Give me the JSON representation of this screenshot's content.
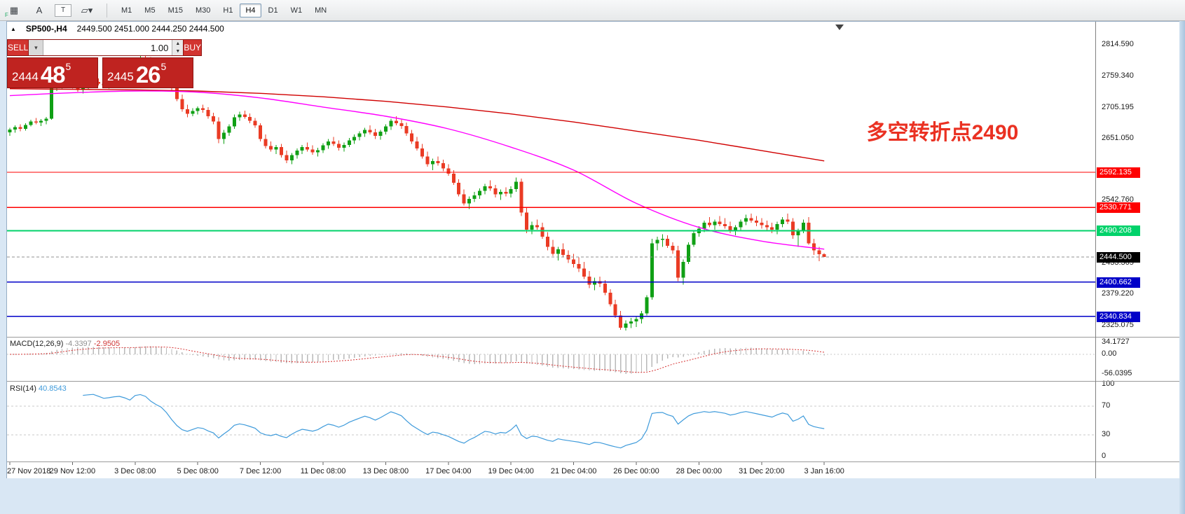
{
  "toolbar": {
    "icons": [
      {
        "name": "indicators-grid-icon",
        "glyph": "▦",
        "badge": "F"
      },
      {
        "name": "annotate-letter-icon",
        "glyph": "A"
      },
      {
        "name": "text-tool-icon",
        "glyph": "T",
        "boxed": true
      },
      {
        "name": "shapes-tool-icon",
        "glyph": "▱▾"
      }
    ],
    "timeframes": [
      "M1",
      "M5",
      "M15",
      "M30",
      "H1",
      "H4",
      "D1",
      "W1",
      "MN"
    ],
    "active_timeframe": "H4"
  },
  "title_bar": {
    "collapse_glyph": "▲",
    "symbol_period": "SP500-,H4",
    "ohlc_text": "2449.500 2451.000 2444.250 2444.500"
  },
  "trade_panel": {
    "sell_label": "SELL",
    "buy_label": "BUY",
    "volume": "1.00",
    "bid_int": "2444",
    "bid_big": "48",
    "bid_sup": "5",
    "ask_int": "2445",
    "ask_big": "26",
    "ask_sup": "5"
  },
  "annotation": {
    "text": "多空转折点2490",
    "color": "#ea3122"
  },
  "chart_data": {
    "type": "candlestick",
    "symbol": "SP500-",
    "timeframe": "H4",
    "price_range": {
      "top": 2855,
      "bottom": 2305
    },
    "bars_per_label": 12,
    "time_labels": [
      "27 Nov 2018",
      "29 Nov 12:00",
      "3 Dec 08:00",
      "5 Dec 08:00",
      "7 Dec 12:00",
      "11 Dec 08:00",
      "13 Dec 08:00",
      "17 Dec 04:00",
      "19 Dec 04:00",
      "21 Dec 04:00",
      "26 Dec 00:00",
      "28 Dec 00:00",
      "31 Dec 20:00",
      "3 Jan 16:00"
    ],
    "y_ticks": [
      "2814.590",
      "2759.340",
      "2705.195",
      "2651.050",
      "2542.760",
      "2433.365",
      "2379.220",
      "2325.075"
    ],
    "colors": {
      "up": "#10a015",
      "down": "#ea3b24",
      "macd_hist": "#b9b9b9",
      "macd_signal": "#d63030",
      "rsi_line": "#3f9bdb",
      "bid_line": "#909090"
    },
    "h_lines": [
      {
        "price": 2592.135,
        "label": "2592.135",
        "color": "#fe0000",
        "width": 1.2
      },
      {
        "price": 2530.771,
        "label": "2530.771",
        "color": "#fe0000",
        "width": 1.2
      },
      {
        "price": 2490.208,
        "label": "2490.208",
        "color": "#00d26a",
        "width": 2
      },
      {
        "price": 2400.662,
        "label": "2400.662",
        "color": "#0000c8",
        "width": 1.5
      },
      {
        "price": 2340.834,
        "label": "2340.834",
        "color": "#0000c8",
        "width": 1.5
      }
    ],
    "current_price": {
      "value": 2444.5,
      "label": "2444.500"
    },
    "overlays": {
      "ma_fast": {
        "color": "#ff00ff",
        "points": [
          [
            0,
            2726
          ],
          [
            12,
            2731
          ],
          [
            24,
            2734
          ],
          [
            36,
            2732
          ],
          [
            48,
            2722
          ],
          [
            60,
            2706
          ],
          [
            72,
            2690
          ],
          [
            84,
            2668
          ],
          [
            96,
            2636
          ],
          [
            108,
            2596
          ],
          [
            120,
            2538
          ],
          [
            132,
            2496
          ],
          [
            144,
            2472
          ],
          [
            156,
            2458
          ]
        ]
      },
      "ma_slow": {
        "color": "#d00000",
        "points": [
          [
            0,
            2738
          ],
          [
            12,
            2737
          ],
          [
            24,
            2736
          ],
          [
            36,
            2734
          ],
          [
            48,
            2730
          ],
          [
            60,
            2724
          ],
          [
            72,
            2716
          ],
          [
            84,
            2706
          ],
          [
            96,
            2694
          ],
          [
            108,
            2680
          ],
          [
            120,
            2664
          ],
          [
            132,
            2648
          ],
          [
            144,
            2630
          ],
          [
            156,
            2612
          ]
        ]
      }
    },
    "indicators": {
      "macd": {
        "label": "MACD(12,26,9)",
        "value_main": "-4.3397",
        "value_signal": "-2.9505",
        "params": {
          "fast": 12,
          "slow": 26,
          "signal": 9
        },
        "scale": [
          {
            "label": "34.1727",
            "v": 34.1727
          },
          {
            "label": "0.00",
            "v": 0
          },
          {
            "label": "-56.0395",
            "v": -56.0395
          }
        ]
      },
      "rsi": {
        "label": "RSI(14)",
        "value": "40.8543",
        "period": 14,
        "levels": [
          70,
          30
        ],
        "scale": [
          {
            "label": "100",
            "v": 100
          },
          {
            "label": "70",
            "v": 70
          },
          {
            "label": "30",
            "v": 30
          },
          {
            "label": "0",
            "v": 0
          }
        ]
      }
    },
    "candles": [
      [
        2662,
        2670,
        2656,
        2667
      ],
      [
        2667,
        2674,
        2661,
        2671
      ],
      [
        2671,
        2676,
        2664,
        2668
      ],
      [
        2668,
        2678,
        2665,
        2675
      ],
      [
        2675,
        2684,
        2672,
        2681
      ],
      [
        2681,
        2687,
        2676,
        2679
      ],
      [
        2679,
        2685,
        2673,
        2682
      ],
      [
        2682,
        2689,
        2676,
        2686
      ],
      [
        2686,
        2745,
        2684,
        2740
      ],
      [
        2740,
        2750,
        2734,
        2744
      ],
      [
        2744,
        2752,
        2738,
        2747
      ],
      [
        2747,
        2754,
        2741,
        2745
      ],
      [
        2745,
        2751,
        2738,
        2742
      ],
      [
        2742,
        2748,
        2733,
        2736
      ],
      [
        2736,
        2744,
        2730,
        2741
      ],
      [
        2741,
        2749,
        2736,
        2746
      ],
      [
        2746,
        2754,
        2742,
        2750
      ],
      [
        2750,
        2756,
        2744,
        2747
      ],
      [
        2747,
        2753,
        2740,
        2744
      ],
      [
        2744,
        2750,
        2738,
        2748
      ],
      [
        2748,
        2757,
        2745,
        2754
      ],
      [
        2754,
        2761,
        2749,
        2757
      ],
      [
        2757,
        2763,
        2751,
        2755
      ],
      [
        2755,
        2760,
        2747,
        2752
      ],
      [
        2768,
        2786,
        2764,
        2782
      ],
      [
        2782,
        2796,
        2778,
        2791
      ],
      [
        2791,
        2800,
        2784,
        2788
      ],
      [
        2788,
        2793,
        2776,
        2780
      ],
      [
        2780,
        2786,
        2770,
        2774
      ],
      [
        2774,
        2781,
        2766,
        2769
      ],
      [
        2769,
        2776,
        2754,
        2758
      ],
      [
        2758,
        2764,
        2736,
        2740
      ],
      [
        2740,
        2746,
        2716,
        2720
      ],
      [
        2720,
        2728,
        2698,
        2702
      ],
      [
        2702,
        2710,
        2688,
        2694
      ],
      [
        2694,
        2704,
        2690,
        2699
      ],
      [
        2699,
        2707,
        2693,
        2704
      ],
      [
        2704,
        2710,
        2696,
        2701
      ],
      [
        2701,
        2706,
        2686,
        2690
      ],
      [
        2690,
        2696,
        2676,
        2681
      ],
      [
        2681,
        2688,
        2643,
        2650
      ],
      [
        2650,
        2666,
        2642,
        2661
      ],
      [
        2661,
        2676,
        2656,
        2672
      ],
      [
        2672,
        2693,
        2668,
        2688
      ],
      [
        2688,
        2698,
        2682,
        2693
      ],
      [
        2693,
        2700,
        2686,
        2689
      ],
      [
        2689,
        2695,
        2678,
        2682
      ],
      [
        2682,
        2687,
        2670,
        2674
      ],
      [
        2674,
        2678,
        2646,
        2650
      ],
      [
        2650,
        2658,
        2634,
        2638
      ],
      [
        2638,
        2646,
        2628,
        2632
      ],
      [
        2632,
        2640,
        2624,
        2636
      ],
      [
        2636,
        2642,
        2618,
        2622
      ],
      [
        2622,
        2630,
        2608,
        2613
      ],
      [
        2613,
        2626,
        2606,
        2622
      ],
      [
        2622,
        2634,
        2616,
        2630
      ],
      [
        2630,
        2640,
        2624,
        2636
      ],
      [
        2636,
        2644,
        2628,
        2632
      ],
      [
        2632,
        2639,
        2623,
        2627
      ],
      [
        2627,
        2635,
        2620,
        2631
      ],
      [
        2631,
        2643,
        2626,
        2639
      ],
      [
        2639,
        2650,
        2633,
        2646
      ],
      [
        2646,
        2654,
        2638,
        2642
      ],
      [
        2642,
        2648,
        2630,
        2635
      ],
      [
        2635,
        2644,
        2628,
        2640
      ],
      [
        2640,
        2652,
        2636,
        2648
      ],
      [
        2648,
        2658,
        2642,
        2654
      ],
      [
        2654,
        2664,
        2648,
        2660
      ],
      [
        2660,
        2670,
        2654,
        2666
      ],
      [
        2666,
        2674,
        2658,
        2662
      ],
      [
        2662,
        2668,
        2650,
        2656
      ],
      [
        2656,
        2666,
        2649,
        2663
      ],
      [
        2663,
        2676,
        2658,
        2672
      ],
      [
        2672,
        2686,
        2666,
        2682
      ],
      [
        2682,
        2690,
        2674,
        2678
      ],
      [
        2678,
        2684,
        2668,
        2673
      ],
      [
        2673,
        2679,
        2656,
        2660
      ],
      [
        2660,
        2666,
        2642,
        2646
      ],
      [
        2646,
        2654,
        2630,
        2634
      ],
      [
        2634,
        2642,
        2616,
        2620
      ],
      [
        2620,
        2628,
        2602,
        2606
      ],
      [
        2606,
        2616,
        2596,
        2612
      ],
      [
        2612,
        2620,
        2604,
        2608
      ],
      [
        2608,
        2614,
        2594,
        2599
      ],
      [
        2599,
        2606,
        2586,
        2590
      ],
      [
        2590,
        2596,
        2570,
        2574
      ],
      [
        2574,
        2580,
        2550,
        2554
      ],
      [
        2554,
        2562,
        2534,
        2538
      ],
      [
        2538,
        2550,
        2528,
        2546
      ],
      [
        2546,
        2558,
        2540,
        2552
      ],
      [
        2552,
        2564,
        2546,
        2560
      ],
      [
        2560,
        2572,
        2554,
        2568
      ],
      [
        2568,
        2578,
        2560,
        2564
      ],
      [
        2564,
        2570,
        2548,
        2554
      ],
      [
        2554,
        2562,
        2544,
        2558
      ],
      [
        2558,
        2566,
        2550,
        2555
      ],
      [
        2555,
        2568,
        2548,
        2563
      ],
      [
        2563,
        2583,
        2558,
        2576
      ],
      [
        2576,
        2581,
        2516,
        2522
      ],
      [
        2522,
        2530,
        2486,
        2492
      ],
      [
        2492,
        2506,
        2484,
        2500
      ],
      [
        2500,
        2510,
        2492,
        2496
      ],
      [
        2496,
        2504,
        2476,
        2480
      ],
      [
        2480,
        2488,
        2456,
        2462
      ],
      [
        2462,
        2474,
        2446,
        2450
      ],
      [
        2450,
        2462,
        2438,
        2458
      ],
      [
        2458,
        2468,
        2444,
        2448
      ],
      [
        2448,
        2456,
        2434,
        2440
      ],
      [
        2440,
        2450,
        2426,
        2432
      ],
      [
        2432,
        2444,
        2418,
        2424
      ],
      [
        2424,
        2436,
        2406,
        2410
      ],
      [
        2410,
        2420,
        2390,
        2396
      ],
      [
        2396,
        2408,
        2386,
        2402
      ],
      [
        2402,
        2410,
        2392,
        2398
      ],
      [
        2398,
        2404,
        2378,
        2382
      ],
      [
        2382,
        2388,
        2358,
        2362
      ],
      [
        2362,
        2370,
        2338,
        2342
      ],
      [
        2342,
        2350,
        2317,
        2321
      ],
      [
        2321,
        2334,
        2316,
        2328
      ],
      [
        2328,
        2338,
        2320,
        2332
      ],
      [
        2332,
        2340,
        2322,
        2336
      ],
      [
        2336,
        2350,
        2328,
        2346
      ],
      [
        2346,
        2378,
        2342,
        2374
      ],
      [
        2374,
        2476,
        2370,
        2468
      ],
      [
        2468,
        2480,
        2456,
        2474
      ],
      [
        2474,
        2484,
        2462,
        2476
      ],
      [
        2476,
        2482,
        2460,
        2464
      ],
      [
        2464,
        2470,
        2450,
        2456
      ],
      [
        2456,
        2464,
        2402,
        2408
      ],
      [
        2408,
        2440,
        2396,
        2436
      ],
      [
        2436,
        2470,
        2432,
        2466
      ],
      [
        2466,
        2490,
        2462,
        2486
      ],
      [
        2486,
        2498,
        2480,
        2494
      ],
      [
        2494,
        2508,
        2488,
        2504
      ],
      [
        2504,
        2514,
        2496,
        2500
      ],
      [
        2500,
        2510,
        2492,
        2506
      ],
      [
        2506,
        2516,
        2498,
        2502
      ],
      [
        2502,
        2512,
        2494,
        2498
      ],
      [
        2498,
        2506,
        2486,
        2490
      ],
      [
        2490,
        2500,
        2482,
        2496
      ],
      [
        2496,
        2510,
        2490,
        2506
      ],
      [
        2506,
        2518,
        2500,
        2512
      ],
      [
        2512,
        2520,
        2504,
        2508
      ],
      [
        2508,
        2516,
        2498,
        2504
      ],
      [
        2504,
        2512,
        2494,
        2500
      ],
      [
        2500,
        2508,
        2490,
        2496
      ],
      [
        2496,
        2504,
        2486,
        2492
      ],
      [
        2492,
        2506,
        2484,
        2502
      ],
      [
        2502,
        2514,
        2496,
        2510
      ],
      [
        2510,
        2520,
        2502,
        2506
      ],
      [
        2506,
        2512,
        2476,
        2482
      ],
      [
        2482,
        2494,
        2462,
        2490
      ],
      [
        2490,
        2510,
        2486,
        2504
      ],
      [
        2504,
        2514,
        2466,
        2468
      ],
      [
        2468,
        2476,
        2448,
        2456
      ],
      [
        2456,
        2462,
        2437,
        2449.5
      ],
      [
        2449.5,
        2451,
        2444.25,
        2444.5
      ]
    ]
  }
}
